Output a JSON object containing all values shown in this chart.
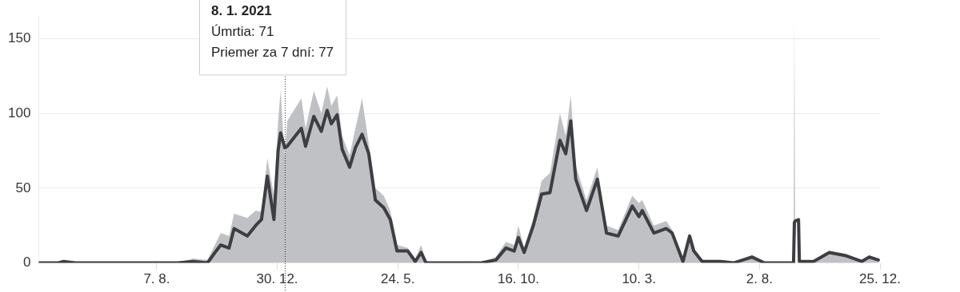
{
  "chart_data": {
    "type": "area",
    "x": [
      "2020-03-18",
      "2020-04-10",
      "2020-04-17",
      "2020-05-01",
      "2020-09-01",
      "2020-09-20",
      "2020-10-07",
      "2020-10-16",
      "2020-10-23",
      "2020-11-02",
      "2020-11-08",
      "2020-11-24",
      "2020-12-04",
      "2020-12-11",
      "2020-12-18",
      "2020-12-26",
      "2020-12-31",
      "2021-01-03",
      "2021-01-08",
      "2021-01-11",
      "2021-01-28",
      "2021-02-02",
      "2021-02-12",
      "2021-02-21",
      "2021-02-28",
      "2021-03-05",
      "2021-03-12",
      "2021-03-18",
      "2021-03-27",
      "2021-04-03",
      "2021-04-11",
      "2021-04-19",
      "2021-04-27",
      "2021-05-07",
      "2021-05-15",
      "2021-05-23",
      "2021-06-05",
      "2021-06-14",
      "2021-06-21",
      "2021-06-27",
      "2021-08-31",
      "2021-09-19",
      "2021-10-01",
      "2021-10-11",
      "2021-10-16",
      "2021-10-23",
      "2021-11-03",
      "2021-11-13",
      "2021-11-23",
      "2021-12-05",
      "2021-12-12",
      "2021-12-18",
      "2021-12-24",
      "2022-01-06",
      "2022-01-19",
      "2022-01-30",
      "2022-02-13",
      "2022-03-02",
      "2022-03-10",
      "2022-03-14",
      "2022-03-28",
      "2022-04-12",
      "2022-04-19",
      "2022-05-02",
      "2022-05-10",
      "2022-05-15",
      "2022-05-25",
      "2022-06-16",
      "2022-07-02",
      "2022-07-24",
      "2022-08-08",
      "2022-09-12",
      "2022-09-13",
      "2022-09-14",
      "2022-09-18",
      "2022-09-19",
      "2022-10-06",
      "2022-10-25",
      "2022-11-13",
      "2022-12-03",
      "2022-12-12",
      "2022-12-23"
    ],
    "series": [
      {
        "color": "#bfc1c5",
        "values": [
          0,
          0,
          2,
          0,
          0,
          3,
          2,
          12,
          20,
          18,
          33,
          30,
          35,
          34,
          70,
          45,
          95,
          115,
          71,
          95,
          110,
          90,
          115,
          100,
          118,
          105,
          112,
          85,
          72,
          90,
          110,
          80,
          50,
          45,
          35,
          12,
          10,
          3,
          12,
          1,
          0,
          4,
          14,
          12,
          25,
          10,
          30,
          55,
          60,
          100,
          85,
          112,
          65,
          42,
          64,
          25,
          22,
          45,
          40,
          42,
          25,
          28,
          22,
          3,
          20,
          10,
          2,
          2,
          1,
          5,
          0,
          0,
          165,
          0,
          0,
          0,
          2,
          8,
          6,
          2,
          5,
          3
        ]
      },
      {
        "type": "line",
        "color": "#3d3e42",
        "values": [
          0,
          0,
          1,
          0,
          0,
          1,
          0,
          7,
          12,
          10,
          23,
          18,
          25,
          29,
          58,
          29,
          75,
          87,
          77,
          78,
          90,
          78,
          98,
          88,
          102,
          93,
          99,
          76,
          64,
          77,
          86,
          73,
          42,
          37,
          29,
          8,
          8,
          1,
          7,
          0,
          0,
          2,
          10,
          8,
          17,
          7,
          25,
          46,
          47,
          82,
          73,
          95,
          56,
          35,
          56,
          20,
          18,
          38,
          31,
          35,
          20,
          23,
          20,
          1,
          18,
          8,
          1,
          1,
          0,
          4,
          0,
          0,
          27,
          28,
          29,
          1,
          1,
          7,
          5,
          1,
          4,
          2
        ]
      }
    ],
    "xlim": [
      "2020-03-18",
      "2022-12-25"
    ],
    "xticks": [
      {
        "value": "2020-08-07",
        "label": "7. 8."
      },
      {
        "value": "2020-12-30",
        "label": "30. 12."
      },
      {
        "value": "2021-05-24",
        "label": "24. 5."
      },
      {
        "value": "2021-10-16",
        "label": "16. 10."
      },
      {
        "value": "2022-03-10",
        "label": "10. 3."
      },
      {
        "value": "2022-08-02",
        "label": "2. 8."
      },
      {
        "value": "2022-12-25",
        "label": "25. 12."
      }
    ],
    "ylim": [
      0,
      165
    ],
    "yticks": [
      0,
      50,
      100,
      150
    ],
    "grid": "y",
    "legend": false,
    "ref_lines": [
      {
        "axis": "x",
        "value": "2021-01-08",
        "color": "#333333",
        "line_style": "dotted"
      }
    ],
    "annotations": [
      "8. 1. 2021\nÚmrtia: 71\nPriemer za 7 dní: 77"
    ]
  }
}
